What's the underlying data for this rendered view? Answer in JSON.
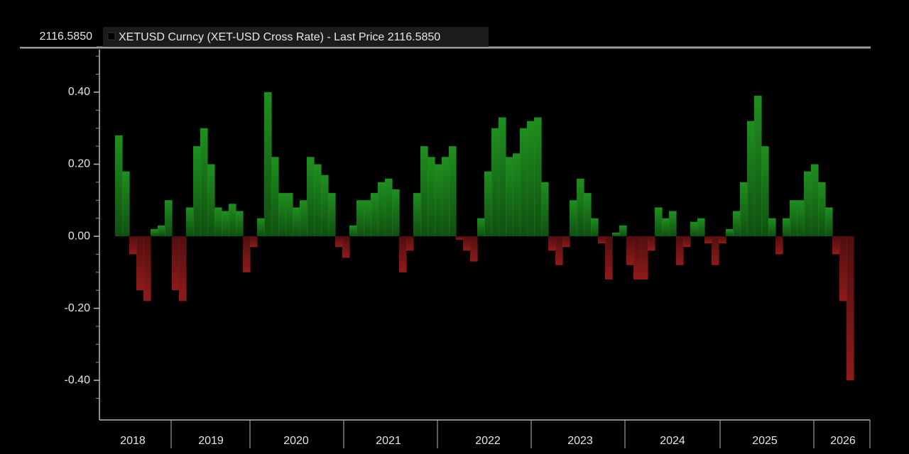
{
  "chart_data": {
    "type": "bar",
    "price_label": "2116.5850",
    "legend": "XETUSD Curncy (XET-USD Cross Rate) - Last Price 2116.5850",
    "positive_color": "#1f8f1f",
    "negative_color": "#8e1b1b",
    "ylim": [
      -0.51,
      0.52
    ],
    "yticks": [
      {
        "value": 0.4,
        "label": "0.40"
      },
      {
        "value": 0.2,
        "label": "0.20"
      },
      {
        "value": 0,
        "label": "0.00"
      },
      {
        "value": -0.2,
        "label": "-0.20"
      },
      {
        "value": -0.4,
        "label": "-0.40"
      }
    ],
    "minor_yticks": [
      0.5,
      0.45,
      0.35,
      0.3,
      0.25,
      0.15,
      0.1,
      0.05,
      -0.05,
      -0.1,
      -0.15,
      -0.25,
      -0.3,
      -0.35,
      -0.45
    ],
    "categories": [
      null,
      null,
      "2018",
      null,
      null,
      null,
      null,
      null,
      null,
      null,
      null,
      null,
      null,
      "2019",
      null,
      null,
      null,
      null,
      null,
      null,
      null,
      null,
      null,
      null,
      null,
      "2020",
      null,
      null,
      null,
      null,
      null,
      null,
      null,
      null,
      null,
      null,
      null,
      null,
      "2021",
      null,
      null,
      null,
      null,
      null,
      null,
      null,
      null,
      null,
      null,
      null,
      null,
      null,
      "2022",
      null,
      null,
      null,
      null,
      null,
      null,
      null,
      null,
      null,
      null,
      null,
      null,
      "2023",
      null,
      null,
      null,
      null,
      null,
      null,
      null,
      null,
      null,
      null,
      null,
      null,
      "2024",
      null,
      null,
      null,
      null,
      null,
      null,
      null,
      null,
      null,
      null,
      null,
      null,
      "2025",
      null,
      null,
      null,
      null,
      null,
      null,
      null,
      null,
      null,
      null,
      "2026",
      null
    ],
    "values": [
      0.28,
      0.18,
      -0.05,
      -0.15,
      -0.18,
      0.02,
      0.03,
      0.1,
      -0.15,
      -0.18,
      0.08,
      0.25,
      0.3,
      0.2,
      0.08,
      0.07,
      0.09,
      0.07,
      -0.1,
      -0.03,
      0.05,
      0.4,
      0.22,
      0.12,
      0.12,
      0.08,
      0.1,
      0.22,
      0.2,
      0.17,
      0.12,
      -0.03,
      -0.06,
      0.03,
      0.1,
      0.1,
      0.12,
      0.15,
      0.16,
      0.13,
      -0.1,
      -0.04,
      0.12,
      0.25,
      0.22,
      0.2,
      0.22,
      0.25,
      -0.01,
      -0.04,
      -0.07,
      0.05,
      0.18,
      0.3,
      0.33,
      0.22,
      0.23,
      0.3,
      0.32,
      0.33,
      0.15,
      -0.04,
      -0.08,
      -0.03,
      0.1,
      0.16,
      0.12,
      0.05,
      -0.02,
      -0.12,
      0.01,
      0.03,
      -0.08,
      -0.12,
      -0.12,
      -0.04,
      0.08,
      0.05,
      0.07,
      -0.08,
      -0.03,
      0.04,
      0.05,
      -0.02,
      -0.08,
      -0.02,
      0.02,
      0.07,
      0.15,
      0.32,
      0.39,
      0.25,
      0.05,
      -0.05,
      0.05,
      0.1,
      0.1,
      0.18,
      0.2,
      0.15,
      0.08,
      -0.05,
      -0.18,
      -0.4
    ]
  }
}
